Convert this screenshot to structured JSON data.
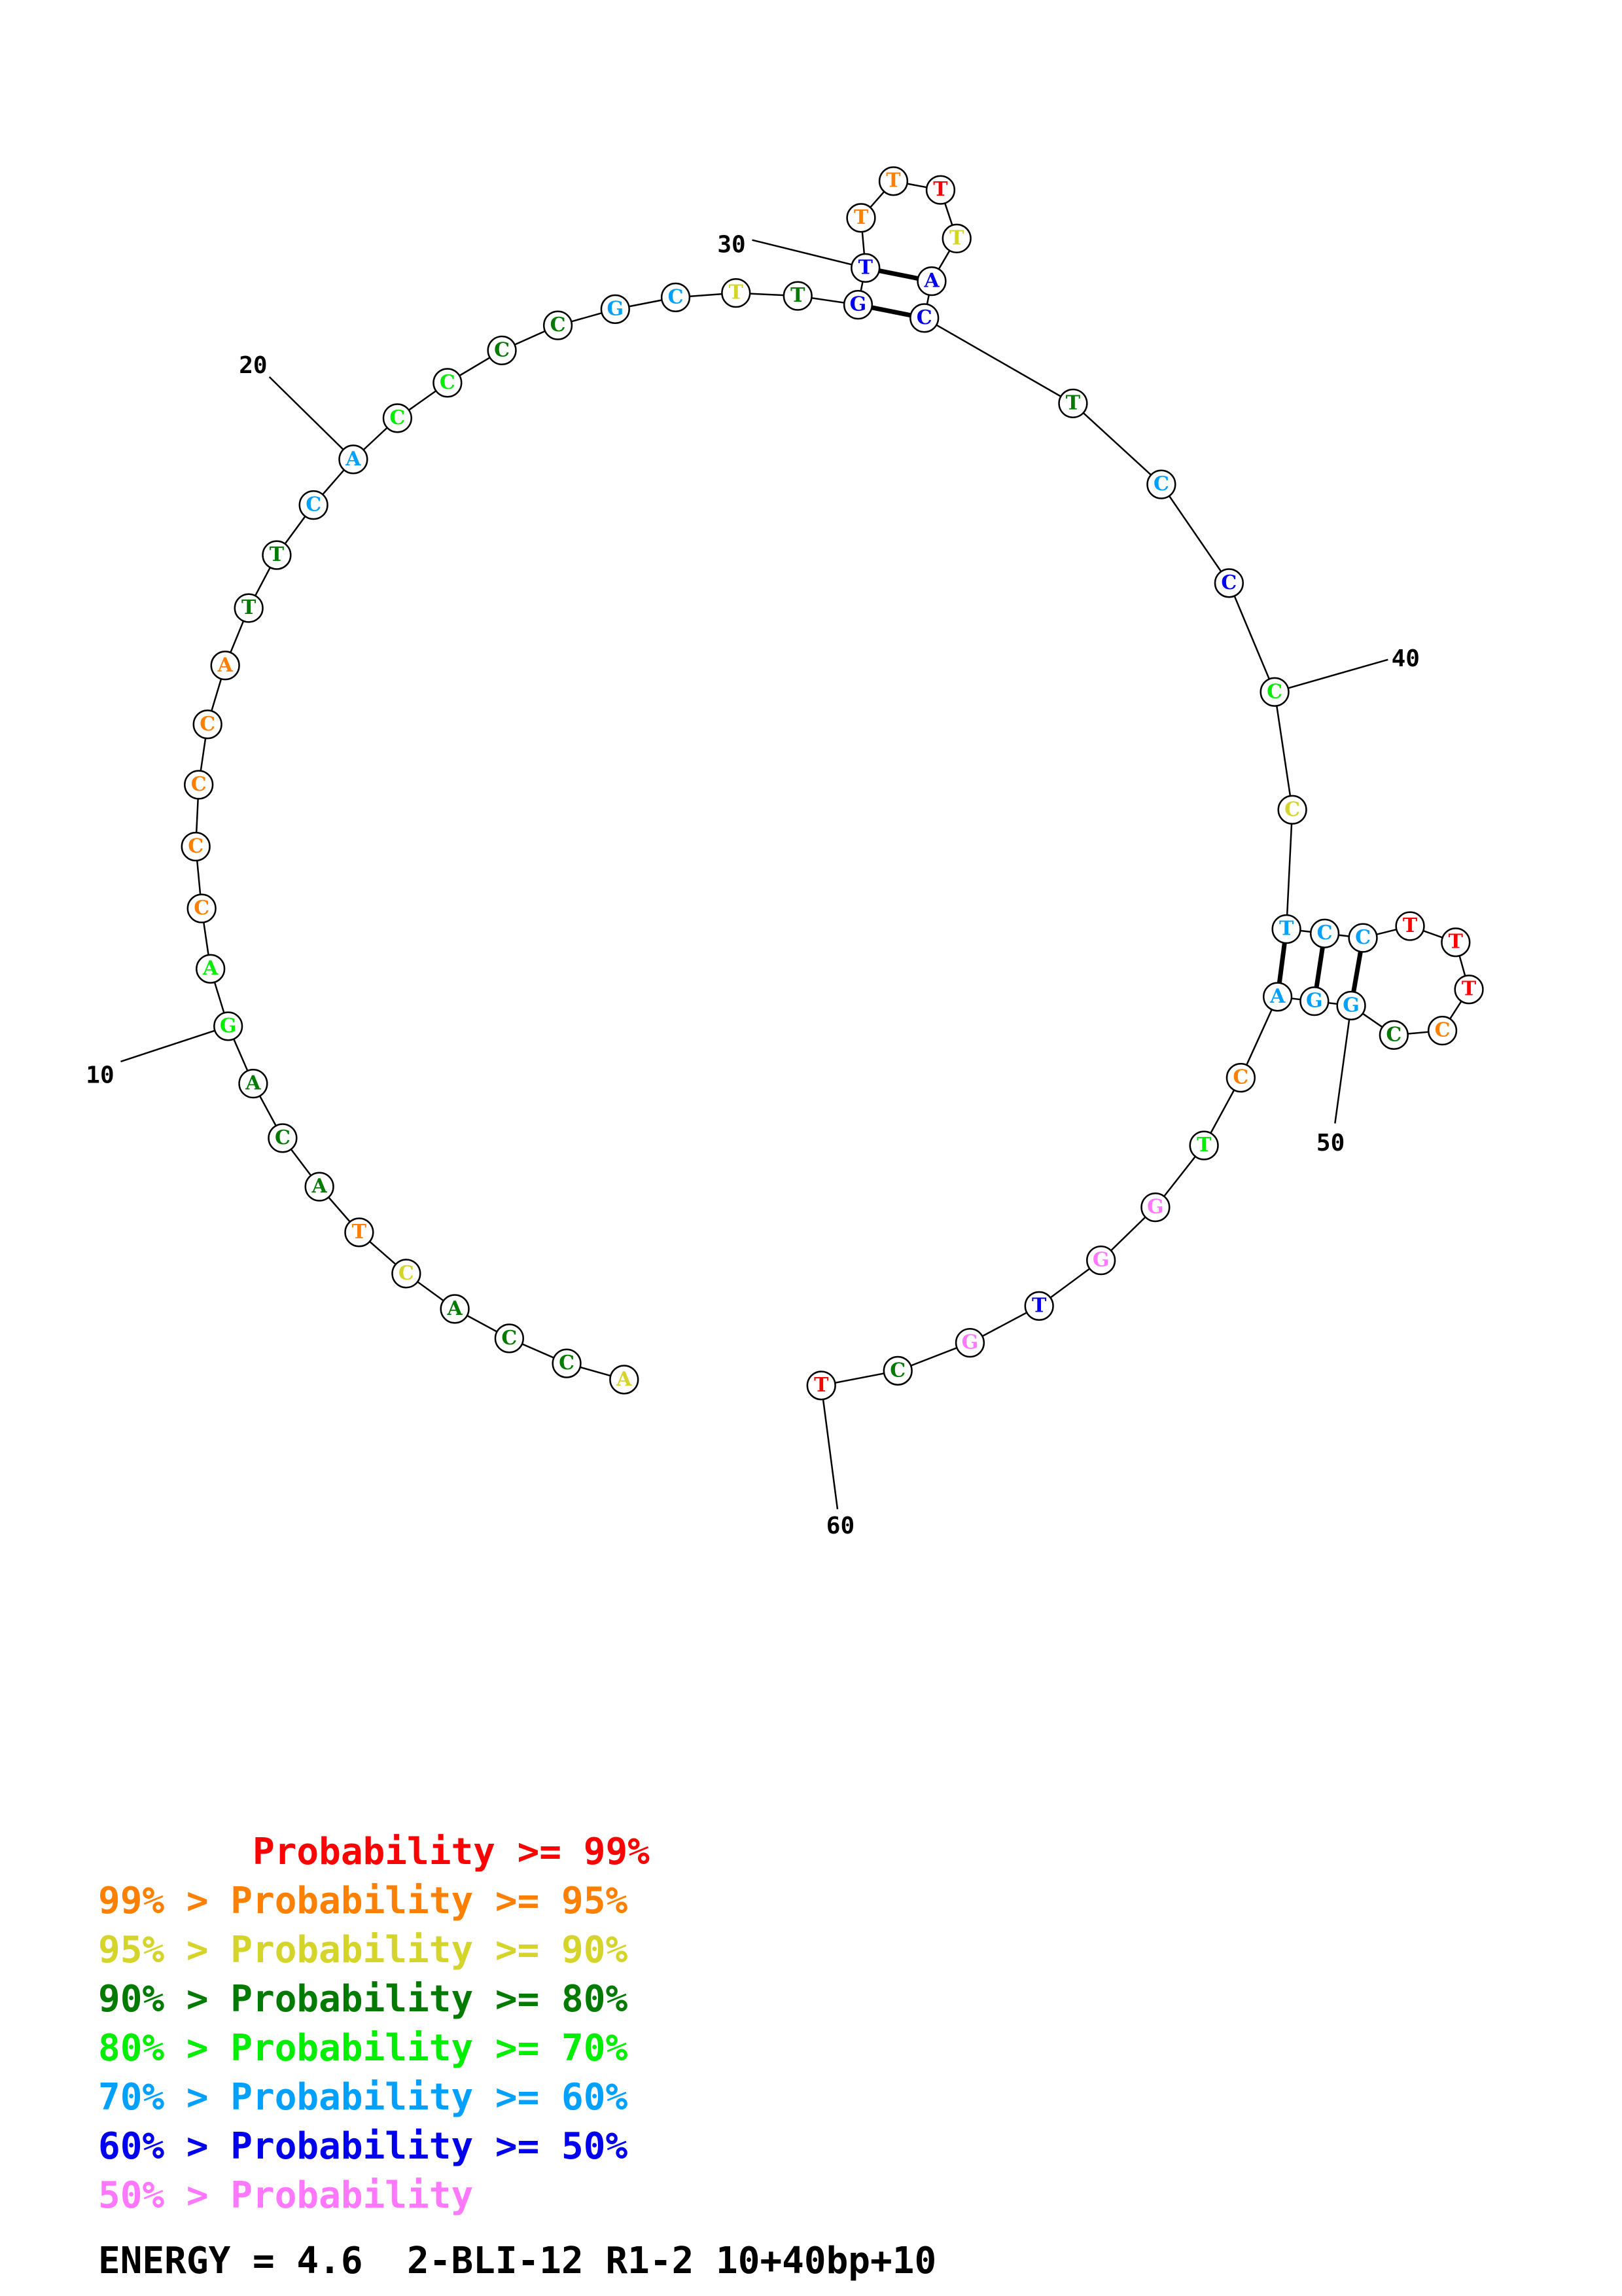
{
  "colors": {
    "p99": "#ff0000",
    "p95": "#ff8000",
    "p90": "#d4d42a",
    "p80": "#007a00",
    "p70": "#00ee00",
    "p60": "#00a0ff",
    "p50": "#0000ee",
    "plow": "#ff78ff"
  },
  "sequence": [
    {
      "n": 1,
      "base": "A",
      "prob": "p90"
    },
    {
      "n": 2,
      "base": "C",
      "prob": "p80"
    },
    {
      "n": 3,
      "base": "C",
      "prob": "p80"
    },
    {
      "n": 4,
      "base": "A",
      "prob": "p80"
    },
    {
      "n": 5,
      "base": "C",
      "prob": "p90"
    },
    {
      "n": 6,
      "base": "T",
      "prob": "p95"
    },
    {
      "n": 7,
      "base": "A",
      "prob": "p80"
    },
    {
      "n": 8,
      "base": "C",
      "prob": "p80"
    },
    {
      "n": 9,
      "base": "A",
      "prob": "p80"
    },
    {
      "n": 10,
      "base": "G",
      "prob": "p70"
    },
    {
      "n": 11,
      "base": "A",
      "prob": "p70"
    },
    {
      "n": 12,
      "base": "C",
      "prob": "p95"
    },
    {
      "n": 13,
      "base": "C",
      "prob": "p95"
    },
    {
      "n": 14,
      "base": "C",
      "prob": "p95"
    },
    {
      "n": 15,
      "base": "C",
      "prob": "p95"
    },
    {
      "n": 16,
      "base": "A",
      "prob": "p95"
    },
    {
      "n": 17,
      "base": "T",
      "prob": "p80"
    },
    {
      "n": 18,
      "base": "T",
      "prob": "p80"
    },
    {
      "n": 19,
      "base": "C",
      "prob": "p60"
    },
    {
      "n": 20,
      "base": "A",
      "prob": "p60"
    },
    {
      "n": 21,
      "base": "C",
      "prob": "p70"
    },
    {
      "n": 22,
      "base": "C",
      "prob": "p70"
    },
    {
      "n": 23,
      "base": "C",
      "prob": "p80"
    },
    {
      "n": 24,
      "base": "C",
      "prob": "p80"
    },
    {
      "n": 25,
      "base": "G",
      "prob": "p60"
    },
    {
      "n": 26,
      "base": "C",
      "prob": "p60"
    },
    {
      "n": 27,
      "base": "T",
      "prob": "p90"
    },
    {
      "n": 28,
      "base": "T",
      "prob": "p80"
    },
    {
      "n": 29,
      "base": "G",
      "prob": "p50"
    },
    {
      "n": 30,
      "base": "T",
      "prob": "p50"
    },
    {
      "n": 31,
      "base": "T",
      "prob": "p95"
    },
    {
      "n": 32,
      "base": "T",
      "prob": "p95"
    },
    {
      "n": 33,
      "base": "T",
      "prob": "p99"
    },
    {
      "n": 34,
      "base": "T",
      "prob": "p90"
    },
    {
      "n": 35,
      "base": "A",
      "prob": "p50"
    },
    {
      "n": 36,
      "base": "C",
      "prob": "p50"
    },
    {
      "n": 37,
      "base": "T",
      "prob": "p80"
    },
    {
      "n": 38,
      "base": "C",
      "prob": "p60"
    },
    {
      "n": 39,
      "base": "C",
      "prob": "p50"
    },
    {
      "n": 40,
      "base": "C",
      "prob": "p70"
    },
    {
      "n": 41,
      "base": "C",
      "prob": "p90"
    },
    {
      "n": 42,
      "base": "T",
      "prob": "p60"
    },
    {
      "n": 43,
      "base": "C",
      "prob": "p60"
    },
    {
      "n": 44,
      "base": "C",
      "prob": "p60"
    },
    {
      "n": 45,
      "base": "T",
      "prob": "p99"
    },
    {
      "n": 46,
      "base": "T",
      "prob": "p99"
    },
    {
      "n": 47,
      "base": "T",
      "prob": "p99"
    },
    {
      "n": 48,
      "base": "C",
      "prob": "p95"
    },
    {
      "n": 49,
      "base": "C",
      "prob": "p80"
    },
    {
      "n": 50,
      "base": "G",
      "prob": "p60"
    },
    {
      "n": 51,
      "base": "G",
      "prob": "p60"
    },
    {
      "n": 52,
      "base": "A",
      "prob": "p60"
    },
    {
      "n": 53,
      "base": "C",
      "prob": "p95"
    },
    {
      "n": 54,
      "base": "T",
      "prob": "p70"
    },
    {
      "n": 55,
      "base": "G",
      "prob": "plow"
    },
    {
      "n": 56,
      "base": "G",
      "prob": "plow"
    },
    {
      "n": 57,
      "base": "T",
      "prob": "p50"
    },
    {
      "n": 58,
      "base": "G",
      "prob": "plow"
    },
    {
      "n": 59,
      "base": "C",
      "prob": "p80"
    },
    {
      "n": 60,
      "base": "T",
      "prob": "p99"
    }
  ],
  "base_pairs": [
    [
      29,
      36
    ],
    [
      30,
      35
    ],
    [
      42,
      52
    ],
    [
      43,
      51
    ],
    [
      44,
      50
    ]
  ],
  "position_labels": [
    {
      "n": 10,
      "text": "10"
    },
    {
      "n": 20,
      "text": "20"
    },
    {
      "n": 30,
      "text": "30"
    },
    {
      "n": 40,
      "text": "40"
    },
    {
      "n": 50,
      "text": "50"
    },
    {
      "n": 60,
      "text": "60"
    }
  ],
  "legend": [
    {
      "prefix": "       ",
      "text": "Probability >= 99%",
      "color": "p99"
    },
    {
      "prefix": "99% > ",
      "text": "Probability >= 95%",
      "color": "p95"
    },
    {
      "prefix": "95% > ",
      "text": "Probability >= 90%",
      "color": "p90"
    },
    {
      "prefix": "90% > ",
      "text": "Probability >= 80%",
      "color": "p80"
    },
    {
      "prefix": "80% > ",
      "text": "Probability >= 70%",
      "color": "p70"
    },
    {
      "prefix": "70% > ",
      "text": "Probability >= 60%",
      "color": "p60"
    },
    {
      "prefix": "60% > ",
      "text": "Probability >= 50%",
      "color": "p50"
    },
    {
      "prefix": "50% > ",
      "text": "Probability",
      "color": "plow"
    }
  ],
  "energy_text": "ENERGY = 4.6  2-BLI-12 R1-2 10+40bp+10"
}
